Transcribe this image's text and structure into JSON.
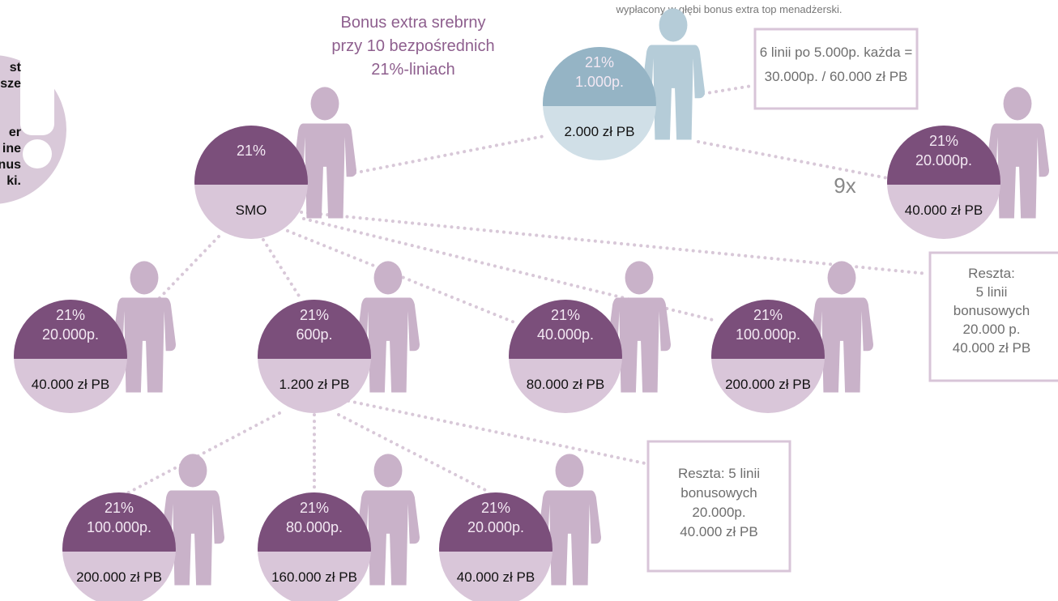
{
  "side_note": {
    "lines": [
      "st",
      "sze",
      "er",
      "ine",
      "nus",
      "ki."
    ]
  },
  "top_caption": "wypłacony w głębi bonus extra top menadżerski.",
  "title": [
    "Bonus extra srebrny",
    "przy 10 bezpośrednich",
    "21%-liniach"
  ],
  "multiplier": "9x",
  "nodes": [
    {
      "top": [
        "21%"
      ],
      "bottom": "SMO"
    },
    {
      "top": [
        "21%",
        "1.000p."
      ],
      "bottom": "2.000 zł PB"
    },
    {
      "top": [
        "21%",
        "20.000p."
      ],
      "bottom": "40.000 zł PB"
    },
    {
      "top": [
        "21%",
        "20.000p."
      ],
      "bottom": "40.000 zł PB"
    },
    {
      "top": [
        "21%",
        "600p."
      ],
      "bottom": "1.200 zł PB"
    },
    {
      "top": [
        "21%",
        "40.000p."
      ],
      "bottom": "80.000 zł PB"
    },
    {
      "top": [
        "21%",
        "100.000p."
      ],
      "bottom": "200.000 zł PB"
    },
    {
      "top": [
        "21%",
        "100.000p."
      ],
      "bottom": "200.000 zł PB"
    },
    {
      "top": [
        "21%",
        "80.000p."
      ],
      "bottom": "160.000 zł PB"
    },
    {
      "top": [
        "21%",
        "20.000p."
      ],
      "bottom": "40.000 zł PB"
    }
  ],
  "boxes": [
    {
      "lines": [
        "6 linii po 5.000p. każda  =",
        "30.000p. / 60.000 zł PB"
      ]
    },
    {
      "lines": [
        "Reszta:",
        "5 linii",
        "bonusowych",
        "20.000 p.",
        "40.000 zł PB"
      ]
    },
    {
      "lines": [
        "Reszta: 5 linii",
        "bonusowych",
        "20.000p.",
        "40.000 zł PB"
      ]
    }
  ]
}
